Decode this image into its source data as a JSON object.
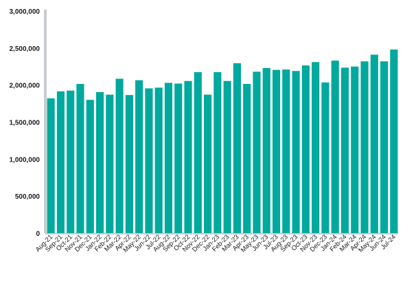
{
  "chart_data": {
    "type": "bar",
    "title": "",
    "xlabel": "",
    "ylabel": "",
    "ylim": [
      0,
      3000000
    ],
    "y_ticks": [
      0,
      500000,
      1000000,
      1500000,
      2000000,
      2500000,
      3000000
    ],
    "y_tick_labels": [
      "0",
      "500,000",
      "1,000,000",
      "1,500,000",
      "2,000,000",
      "2,500,000",
      "3,000,000"
    ],
    "grid": false,
    "bar_color": "#00a99d",
    "axis_color": "#c8ccd0",
    "categories": [
      "Aug-21",
      "Sep-21",
      "Oct-21",
      "Nov-21",
      "Dec-21",
      "Jan-22",
      "Feb-22",
      "Mar-22",
      "Apr-22",
      "May-22",
      "Jun-22",
      "Jul-22",
      "Aug-22",
      "Sep-22",
      "Oct-22",
      "Nov-22",
      "Dec-22",
      "Jan-23",
      "Feb-23",
      "Mar-23",
      "Apr-23",
      "May-23",
      "Jun-23",
      "Jul-23",
      "Aug-23",
      "Sep-23",
      "Oct-23",
      "Nov-23",
      "Dec-23",
      "Jan-24",
      "Feb-24",
      "Mar-24",
      "Apr-24",
      "May-24",
      "Jun-24",
      "Jul-24"
    ],
    "values": [
      1820000,
      1915000,
      1925000,
      2015000,
      1800000,
      1905000,
      1870000,
      2085000,
      1865000,
      2065000,
      1955000,
      1965000,
      2030000,
      2020000,
      2055000,
      2175000,
      1870000,
      2175000,
      2055000,
      2295000,
      2015000,
      2180000,
      2230000,
      2205000,
      2210000,
      2190000,
      2265000,
      2310000,
      2035000,
      2330000,
      2235000,
      2250000,
      2320000,
      2410000,
      2320000,
      2480000
    ]
  }
}
